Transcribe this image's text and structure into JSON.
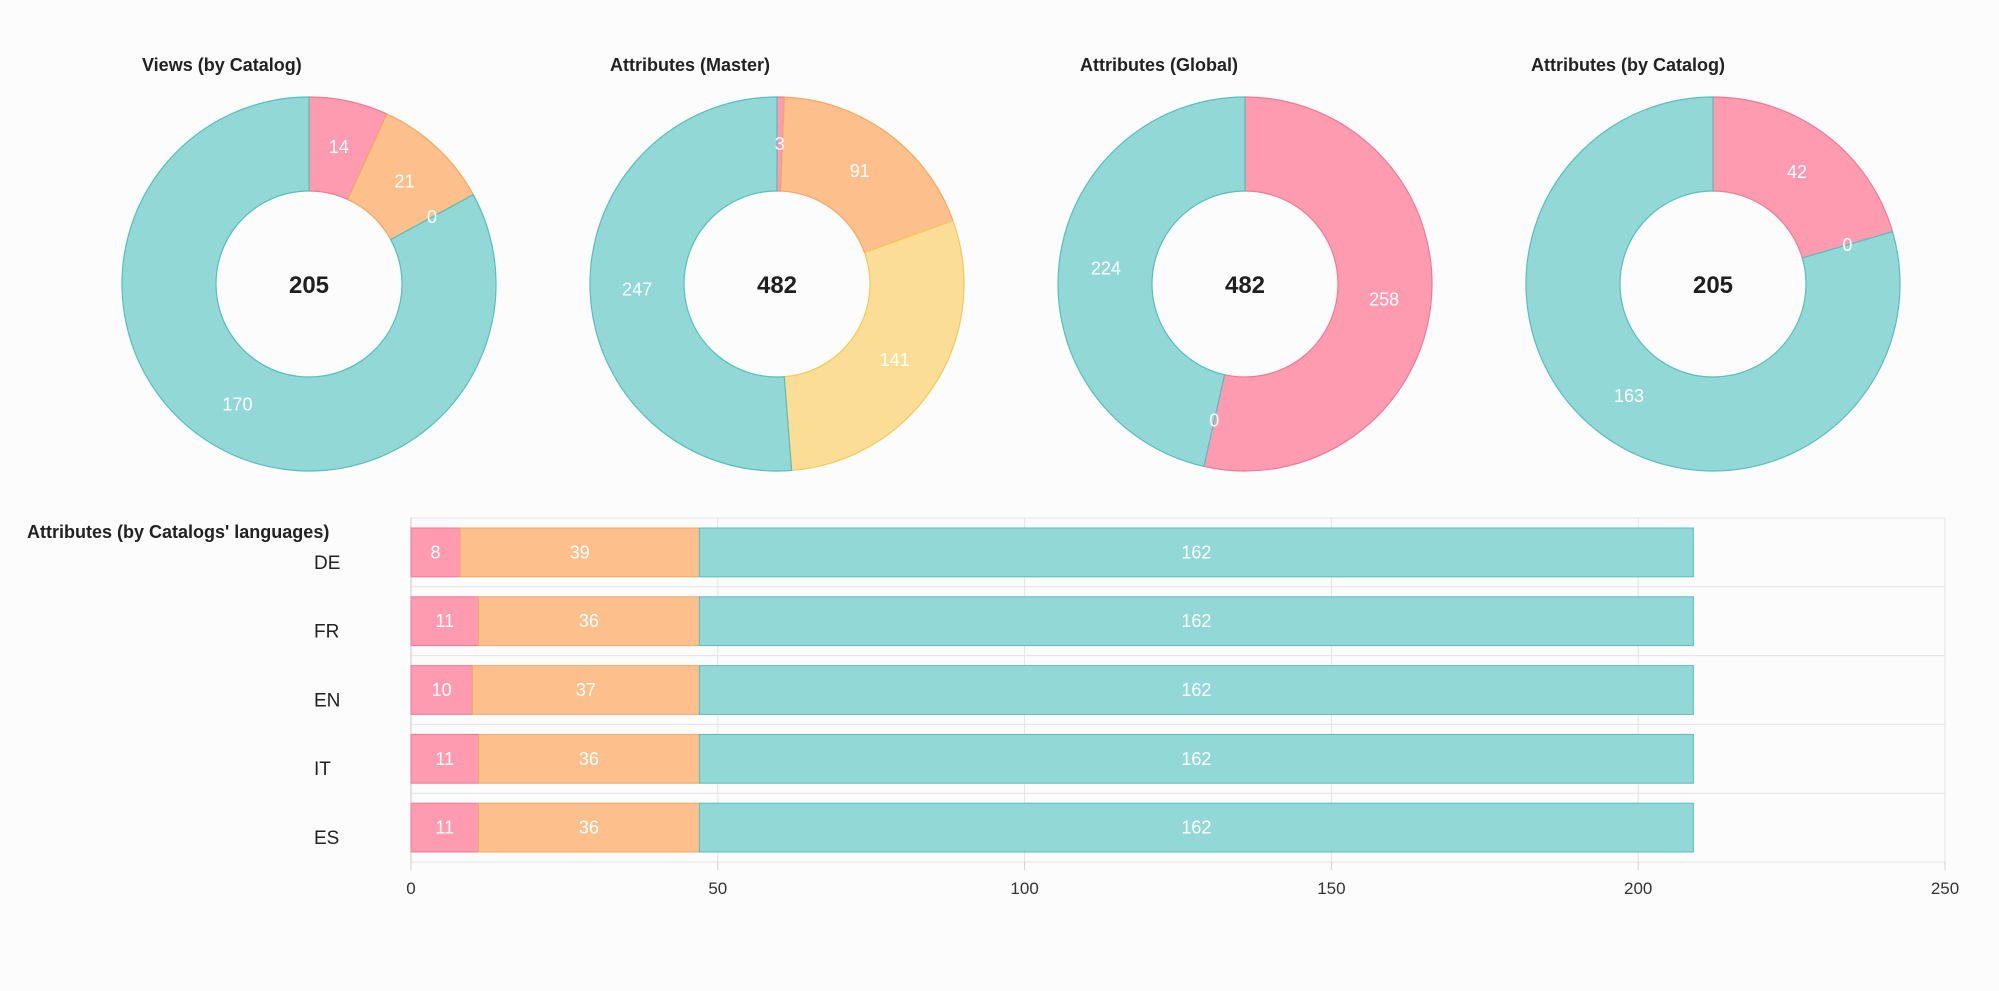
{
  "colors": {
    "pink": "#ff9bb0",
    "orange": "#fdc08c",
    "yellow": "#fcdd96",
    "teal": "#92d8d6"
  },
  "chart_data": [
    {
      "type": "pie",
      "title": "Views (by Catalog)",
      "total": "205",
      "slices": [
        {
          "value": 14,
          "label": "14",
          "color": "pink"
        },
        {
          "value": 21,
          "label": "21",
          "color": "orange"
        },
        {
          "value": 0,
          "label": "0",
          "color": "yellow"
        },
        {
          "value": 170,
          "label": "170",
          "color": "teal"
        }
      ]
    },
    {
      "type": "pie",
      "title": "Attributes (Master)",
      "total": "482",
      "slices": [
        {
          "value": 3,
          "label": "3",
          "color": "pink"
        },
        {
          "value": 91,
          "label": "91",
          "color": "orange"
        },
        {
          "value": 141,
          "label": "141",
          "color": "yellow"
        },
        {
          "value": 247,
          "label": "247",
          "color": "teal"
        }
      ]
    },
    {
      "type": "pie",
      "title": "Attributes (Global)",
      "total": "482",
      "slices": [
        {
          "value": 258,
          "label": "258",
          "color": "pink"
        },
        {
          "value": 0,
          "label": "0",
          "color": "orange"
        },
        {
          "value": 224,
          "label": "224",
          "color": "teal"
        }
      ]
    },
    {
      "type": "pie",
      "title": "Attributes (by Catalog)",
      "total": "205",
      "slices": [
        {
          "value": 42,
          "label": "42",
          "color": "pink"
        },
        {
          "value": 0,
          "label": "0",
          "color": "orange"
        },
        {
          "value": 163,
          "label": "163",
          "color": "teal"
        }
      ]
    },
    {
      "type": "bar",
      "orientation": "horizontal",
      "stacked": true,
      "title": "Attributes (by Catalogs' languages)",
      "categories": [
        "DE",
        "FR",
        "EN",
        "IT",
        "ES"
      ],
      "xlim": [
        0,
        250
      ],
      "xticks": [
        "0",
        "50",
        "100",
        "150",
        "200",
        "250"
      ],
      "series": [
        {
          "color": "pink",
          "values": [
            8,
            11,
            10,
            11,
            11
          ]
        },
        {
          "color": "orange",
          "values": [
            39,
            36,
            37,
            36,
            36
          ]
        },
        {
          "color": "teal",
          "values": [
            162,
            162,
            162,
            162,
            162
          ]
        }
      ],
      "grid": true
    }
  ]
}
